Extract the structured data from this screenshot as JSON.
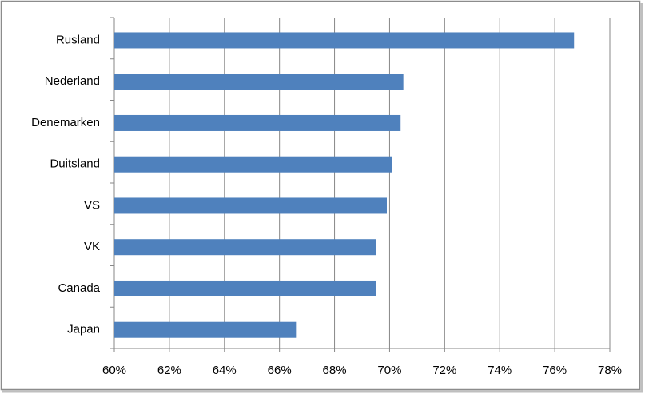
{
  "chart_data": {
    "type": "bar",
    "orientation": "horizontal",
    "categories": [
      "Rusland",
      "Nederland",
      "Denemarken",
      "Duitsland",
      "VS",
      "VK",
      "Canada",
      "Japan"
    ],
    "values": [
      76.7,
      70.5,
      70.4,
      70.1,
      69.9,
      69.5,
      69.5,
      66.6
    ],
    "color": "#4f81bd",
    "xlim": [
      60,
      78
    ],
    "xticks": [
      {
        "value": 60,
        "label": "60%"
      },
      {
        "value": 62,
        "label": "62%"
      },
      {
        "value": 64,
        "label": "64%"
      },
      {
        "value": 66,
        "label": "66%"
      },
      {
        "value": 68,
        "label": "68%"
      },
      {
        "value": 70,
        "label": "70%"
      },
      {
        "value": 72,
        "label": "72%"
      },
      {
        "value": 74,
        "label": "74%"
      },
      {
        "value": 76,
        "label": "76%"
      },
      {
        "value": 78,
        "label": "78%"
      }
    ],
    "grid": true
  }
}
